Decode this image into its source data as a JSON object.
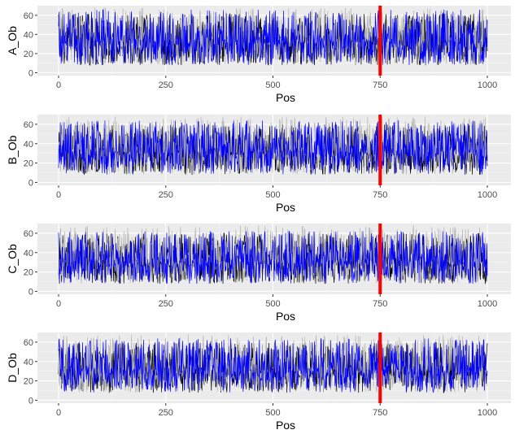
{
  "chart_data": [
    {
      "type": "line",
      "xlabel": "Pos",
      "ylabel": "A_Ob",
      "xlim": [
        0,
        1000
      ],
      "ylim": [
        -3,
        70
      ],
      "x_ticks": [
        "0",
        "250",
        "500",
        "750",
        "1000"
      ],
      "y_ticks": [
        "0",
        "20",
        "40",
        "60"
      ],
      "grid": true,
      "background": "#ebebeb",
      "vline": {
        "x": 750,
        "color": "#ff0000"
      },
      "series": [
        {
          "color": "#000000",
          "x_range": [
            0,
            1000
          ],
          "y_range": [
            5,
            62
          ]
        },
        {
          "color": "#b3b3b3",
          "x_range": [
            0,
            1000
          ],
          "y_range": [
            5,
            68
          ]
        },
        {
          "color": "#0000ff",
          "x_range": [
            0,
            1000
          ],
          "y_range": [
            5,
            66
          ]
        }
      ]
    },
    {
      "type": "line",
      "xlabel": "Pos",
      "ylabel": "B_Ob",
      "xlim": [
        0,
        1000
      ],
      "ylim": [
        -3,
        70
      ],
      "x_ticks": [
        "0",
        "250",
        "500",
        "750",
        "1000"
      ],
      "y_ticks": [
        "0",
        "20",
        "40",
        "60"
      ],
      "grid": true,
      "background": "#ebebeb",
      "vline": {
        "x": 750,
        "color": "#ff0000"
      },
      "series": [
        {
          "color": "#000000",
          "x_range": [
            0,
            1000
          ],
          "y_range": [
            5,
            60
          ]
        },
        {
          "color": "#b3b3b3",
          "x_range": [
            0,
            1000
          ],
          "y_range": [
            5,
            68
          ]
        },
        {
          "color": "#0000ff",
          "x_range": [
            0,
            1000
          ],
          "y_range": [
            5,
            64
          ]
        }
      ]
    },
    {
      "type": "line",
      "xlabel": "Pos",
      "ylabel": "C_Ob",
      "xlim": [
        0,
        1000
      ],
      "ylim": [
        -3,
        70
      ],
      "x_ticks": [
        "0",
        "250",
        "500",
        "750",
        "1000"
      ],
      "y_ticks": [
        "0",
        "20",
        "40",
        "60"
      ],
      "grid": true,
      "background": "#ebebeb",
      "vline": {
        "x": 750,
        "color": "#ff0000"
      },
      "series": [
        {
          "color": "#000000",
          "x_range": [
            0,
            1000
          ],
          "y_range": [
            5,
            60
          ]
        },
        {
          "color": "#b3b3b3",
          "x_range": [
            0,
            1000
          ],
          "y_range": [
            5,
            68
          ]
        },
        {
          "color": "#0000ff",
          "x_range": [
            0,
            1000
          ],
          "y_range": [
            5,
            62
          ]
        }
      ]
    },
    {
      "type": "line",
      "xlabel": "Pos",
      "ylabel": "D_Ob",
      "xlim": [
        0,
        1000
      ],
      "ylim": [
        -3,
        70
      ],
      "x_ticks": [
        "0",
        "250",
        "500",
        "750",
        "1000"
      ],
      "y_ticks": [
        "0",
        "20",
        "40",
        "60"
      ],
      "grid": true,
      "background": "#ebebeb",
      "vline": {
        "x": 750,
        "color": "#ff0000"
      },
      "series": [
        {
          "color": "#000000",
          "x_range": [
            0,
            1000
          ],
          "y_range": [
            5,
            60
          ]
        },
        {
          "color": "#b3b3b3",
          "x_range": [
            0,
            1000
          ],
          "y_range": [
            5,
            68
          ]
        },
        {
          "color": "#0000ff",
          "x_range": [
            0,
            1000
          ],
          "y_range": [
            5,
            64
          ]
        }
      ]
    }
  ]
}
